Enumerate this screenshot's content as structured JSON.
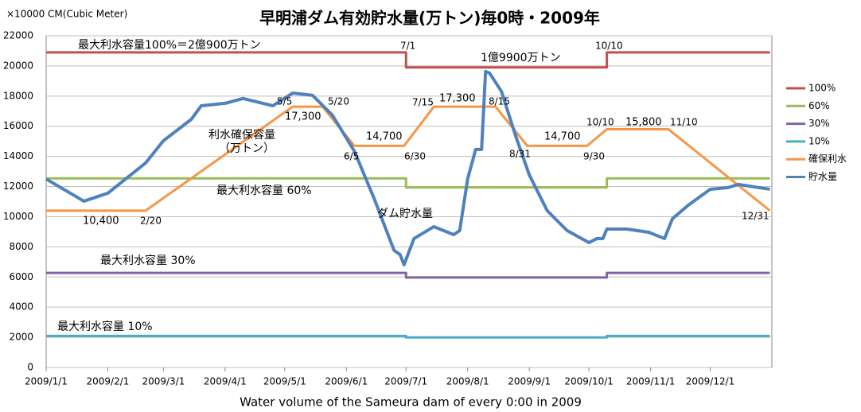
{
  "chart_data": {
    "type": "line",
    "title": "早明浦ダム有効貯水量(万トン)毎0時・2009年",
    "y_label": "×10000 CM(Cubic Meter)",
    "x_label": "Water volume of the Sameura dam of every 0:00 in 2009",
    "xlim": [
      "2009-01-01",
      "2010-01-01"
    ],
    "xticks": [
      {
        "value": "2009-01-01",
        "label": "2009/1/1"
      },
      {
        "value": "2009-02-01",
        "label": "2009/2/1"
      },
      {
        "value": "2009-03-01",
        "label": "2009/3/1"
      },
      {
        "value": "2009-04-01",
        "label": "2009/4/1"
      },
      {
        "value": "2009-05-01",
        "label": "2009/5/1"
      },
      {
        "value": "2009-06-01",
        "label": "2009/6/1"
      },
      {
        "value": "2009-07-01",
        "label": "2009/7/1"
      },
      {
        "value": "2009-08-01",
        "label": "2009/8/1"
      },
      {
        "value": "2009-09-01",
        "label": "2009/9/1"
      },
      {
        "value": "2009-10-01",
        "label": "2009/10/1"
      },
      {
        "value": "2009-11-01",
        "label": "2009/11/1"
      },
      {
        "value": "2009-12-01",
        "label": "2009/12/1"
      }
    ],
    "ylim": [
      0,
      22000
    ],
    "yticks": [
      0,
      2000,
      4000,
      6000,
      8000,
      10000,
      12000,
      14000,
      16000,
      18000,
      20000,
      22000
    ],
    "grid": true,
    "legend": "right",
    "series": [
      {
        "name": "100%",
        "color": "#c0504d",
        "x": [
          "2009-01-01",
          "2009-07-01",
          "2009-07-01",
          "2009-10-10",
          "2009-10-10",
          "2009-12-31"
        ],
        "values": [
          20900,
          20900,
          19900,
          19900,
          20900,
          20900
        ]
      },
      {
        "name": "60%",
        "color": "#9bbb59",
        "x": [
          "2009-01-01",
          "2009-07-01",
          "2009-07-01",
          "2009-10-10",
          "2009-10-10",
          "2009-12-31"
        ],
        "values": [
          12540,
          12540,
          11940,
          11940,
          12540,
          12540
        ]
      },
      {
        "name": "30%",
        "color": "#8064a2",
        "x": [
          "2009-01-01",
          "2009-07-01",
          "2009-07-01",
          "2009-10-10",
          "2009-10-10",
          "2009-12-31"
        ],
        "values": [
          6270,
          6270,
          5970,
          5970,
          6270,
          6270
        ]
      },
      {
        "name": "10%",
        "color": "#4bacc6",
        "x": [
          "2009-01-01",
          "2009-07-01",
          "2009-07-01",
          "2009-10-10",
          "2009-10-10",
          "2009-12-31"
        ],
        "values": [
          2090,
          2090,
          1990,
          1990,
          2090,
          2090
        ]
      },
      {
        "name": "確保利水",
        "color": "#f79646",
        "x": [
          "2009-01-01",
          "2009-02-20",
          "2009-05-05",
          "2009-05-20",
          "2009-06-05",
          "2009-06-30",
          "2009-07-15",
          "2009-08-15",
          "2009-08-31",
          "2009-09-30",
          "2009-10-10",
          "2009-11-10",
          "2009-12-31"
        ],
        "values": [
          10400,
          10400,
          17300,
          17300,
          14700,
          14700,
          17300,
          17300,
          14700,
          14700,
          15800,
          15800,
          10400
        ]
      },
      {
        "name": "貯水量",
        "color": "#4f81bd",
        "x": [
          "2009-01-01",
          "2009-01-20",
          "2009-02-01",
          "2009-02-20",
          "2009-03-01",
          "2009-03-15",
          "2009-03-20",
          "2009-04-01",
          "2009-04-10",
          "2009-04-25",
          "2009-05-05",
          "2009-05-15",
          "2009-05-25",
          "2009-06-05",
          "2009-06-15",
          "2009-06-25",
          "2009-06-28",
          "2009-06-30",
          "2009-07-05",
          "2009-07-15",
          "2009-07-25",
          "2009-07-28",
          "2009-08-01",
          "2009-08-05",
          "2009-08-08",
          "2009-08-10",
          "2009-08-12",
          "2009-08-18",
          "2009-08-25",
          "2009-09-01",
          "2009-09-10",
          "2009-09-20",
          "2009-10-01",
          "2009-10-05",
          "2009-10-08",
          "2009-10-10",
          "2009-10-20",
          "2009-10-31",
          "2009-11-08",
          "2009-11-12",
          "2009-11-20",
          "2009-12-01",
          "2009-12-10",
          "2009-12-15",
          "2009-12-31"
        ],
        "values": [
          12500,
          11030,
          11560,
          13560,
          15040,
          16460,
          17360,
          17520,
          17840,
          17360,
          18200,
          18050,
          16730,
          14350,
          11190,
          7760,
          7490,
          6810,
          8550,
          9340,
          8810,
          9080,
          12510,
          14460,
          14460,
          19630,
          19530,
          18310,
          15410,
          12770,
          10400,
          9080,
          8280,
          8550,
          8550,
          9180,
          9180,
          8970,
          8550,
          9870,
          10770,
          11820,
          11930,
          12140,
          11820
        ]
      }
    ],
    "annotations": [
      "最大利水容量100%＝2億900万トン",
      "7/1",
      "10/10",
      "1億9900万トン",
      "5/5",
      "17,300",
      "5/20",
      "7/15",
      "17,300",
      "8/15",
      "利水確保容量",
      "（万トン）",
      "14,700",
      "6/5",
      "6/30",
      "8/31",
      "14,700",
      "9/30",
      "10/10",
      "15,800",
      "11/10",
      "最大利水容量 60%",
      "10,400",
      "2/20",
      "ダム貯水量",
      "12/31",
      "最大利水容量 30%",
      "最大利水容量 10%"
    ]
  }
}
